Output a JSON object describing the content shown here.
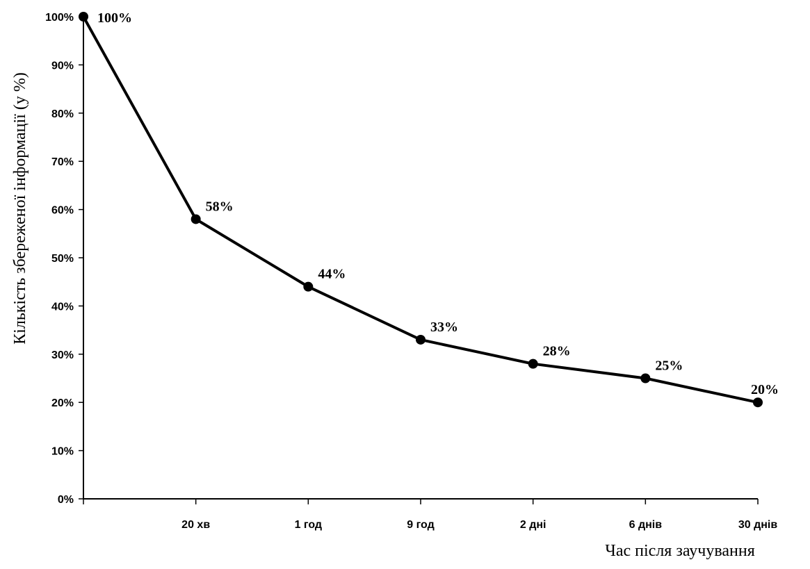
{
  "chart_data": {
    "type": "line",
    "xlabel": "Час після заучування",
    "ylabel": "Кількість збереженої інформації (у %)",
    "ylim": [
      0,
      100
    ],
    "yticks": [
      "0%",
      "10%",
      "20%",
      "30%",
      "40%",
      "50%",
      "60%",
      "70%",
      "80%",
      "90%",
      "100%"
    ],
    "categories": [
      "",
      "20 хв",
      "1 год",
      "9 год",
      "2 дні",
      "6 днів",
      "30 днів"
    ],
    "series": [
      {
        "values": [
          100,
          58,
          44,
          33,
          28,
          25,
          20
        ],
        "labels": [
          "100%",
          "58%",
          "44%",
          "33%",
          "28%",
          "25%",
          "20%"
        ]
      }
    ],
    "grid": false,
    "line_color": "#000000"
  }
}
